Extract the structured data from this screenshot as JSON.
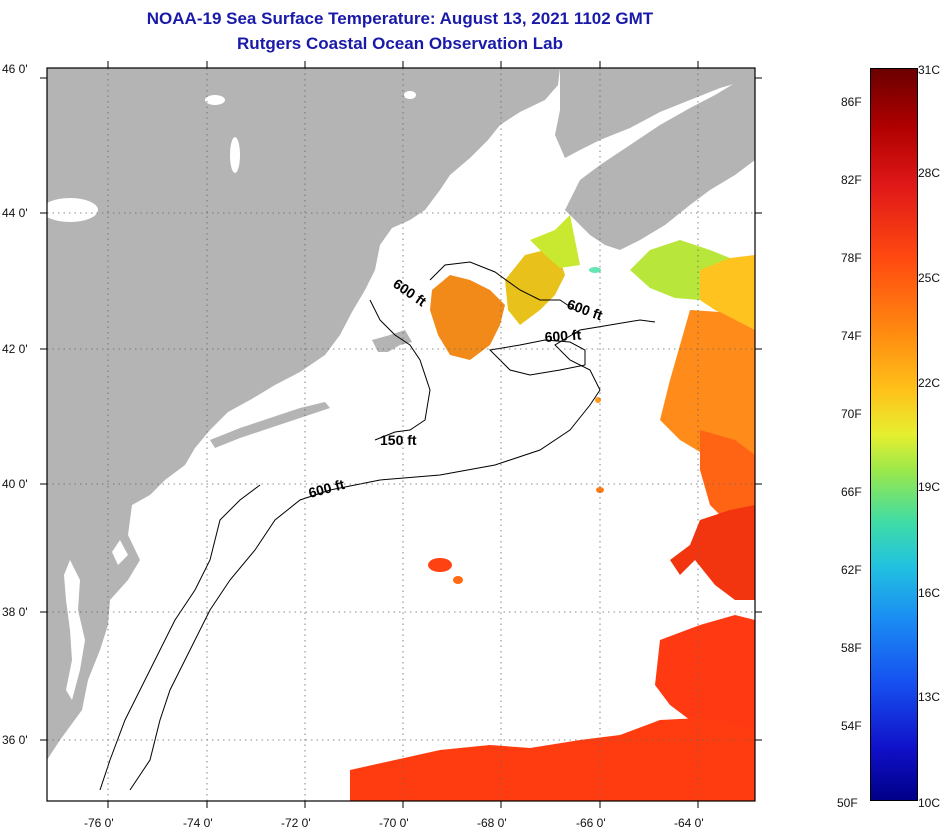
{
  "title": {
    "line1": "NOAA-19 Sea Surface Temperature:  August 13, 2021 1102 GMT",
    "line2": "Rutgers Coastal Ocean Observation Lab"
  },
  "axes": {
    "lat_labels": [
      "46 0'",
      "44 0'",
      "42 0'",
      "40 0'",
      "38 0'",
      "36 0'"
    ],
    "lon_labels": [
      "-76 0'",
      "-74 0'",
      "-72 0'",
      "-70 0'",
      "-68 0'",
      "-66 0'",
      "-64 0'"
    ]
  },
  "contours": {
    "a": "600 ft",
    "b": "600 ft",
    "c": "600 ft",
    "d": "150 ft",
    "e": "600 ft"
  },
  "colorbar": {
    "fahrenheit": [
      "86F",
      "82F",
      "78F",
      "74F",
      "70F",
      "66F",
      "62F",
      "58F",
      "54F",
      "50F"
    ],
    "celsius": [
      "31C",
      "28C",
      "25C",
      "22C",
      "19C",
      "16C",
      "13C",
      "10C"
    ]
  },
  "colors": {
    "land": "#b4b4b4",
    "ocean": "#ffffff",
    "title": "#1a1aa8"
  }
}
